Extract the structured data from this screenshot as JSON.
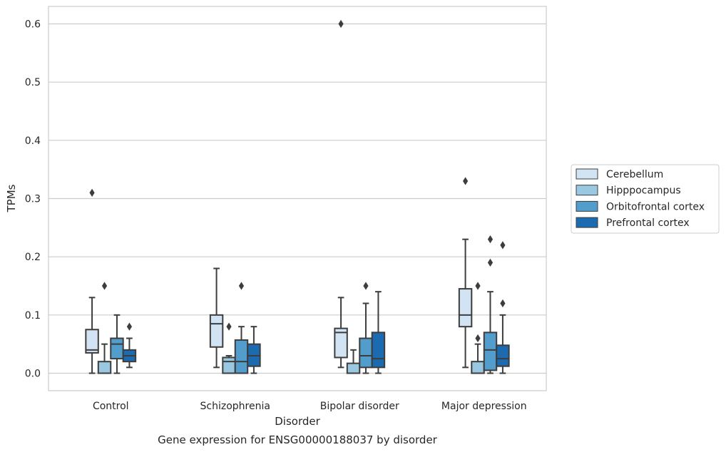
{
  "chart_data": {
    "type": "box",
    "caption": "Gene expression for ENSG00000188037 by disorder",
    "xlabel": "Disorder",
    "ylabel": "TPMs",
    "ylim": [
      -0.03,
      0.63
    ],
    "yticks": [
      0.0,
      0.1,
      0.2,
      0.3,
      0.4,
      0.5,
      0.6
    ],
    "ytick_labels": [
      "0.0",
      "0.1",
      "0.2",
      "0.3",
      "0.4",
      "0.5",
      "0.6"
    ],
    "grid": "horizontal",
    "legend_position": "outside-right",
    "categories": [
      "Control",
      "Schizophrenia",
      "Bipolar disorder",
      "Major depression"
    ],
    "series": [
      {
        "name": "Cerebellum",
        "color": "#d2e3f3",
        "boxes": [
          {
            "whislo": 0.0,
            "q1": 0.035,
            "med": 0.04,
            "q3": 0.075,
            "whishi": 0.13,
            "fliers": [
              0.31
            ]
          },
          {
            "whislo": 0.01,
            "q1": 0.045,
            "med": 0.085,
            "q3": 0.1,
            "whishi": 0.18,
            "fliers": []
          },
          {
            "whislo": 0.01,
            "q1": 0.027,
            "med": 0.07,
            "q3": 0.077,
            "whishi": 0.13,
            "fliers": [
              0.6
            ]
          },
          {
            "whislo": 0.01,
            "q1": 0.08,
            "med": 0.1,
            "q3": 0.145,
            "whishi": 0.23,
            "fliers": [
              0.33
            ]
          }
        ]
      },
      {
        "name": "Hipppocampus",
        "color": "#9ac8e0",
        "boxes": [
          {
            "whislo": 0.0,
            "q1": 0.0,
            "med": 0.0,
            "q3": 0.02,
            "whishi": 0.05,
            "fliers": [
              0.15
            ]
          },
          {
            "whislo": 0.0,
            "q1": 0.0,
            "med": 0.02,
            "q3": 0.027,
            "whishi": 0.03,
            "fliers": [
              0.08
            ]
          },
          {
            "whislo": 0.0,
            "q1": 0.0,
            "med": 0.0,
            "q3": 0.017,
            "whishi": 0.04,
            "fliers": []
          },
          {
            "whislo": 0.0,
            "q1": 0.0,
            "med": 0.0,
            "q3": 0.02,
            "whishi": 0.05,
            "fliers": [
              0.06,
              0.15
            ]
          }
        ]
      },
      {
        "name": "Orbitofrontal cortex",
        "color": "#529dcc",
        "boxes": [
          {
            "whislo": 0.0,
            "q1": 0.025,
            "med": 0.05,
            "q3": 0.06,
            "whishi": 0.1,
            "fliers": []
          },
          {
            "whislo": 0.0,
            "q1": 0.0,
            "med": 0.02,
            "q3": 0.057,
            "whishi": 0.08,
            "fliers": [
              0.15
            ]
          },
          {
            "whislo": 0.0,
            "q1": 0.01,
            "med": 0.03,
            "q3": 0.06,
            "whishi": 0.12,
            "fliers": [
              0.15
            ]
          },
          {
            "whislo": 0.0,
            "q1": 0.005,
            "med": 0.04,
            "q3": 0.07,
            "whishi": 0.14,
            "fliers": [
              0.19,
              0.23
            ]
          }
        ]
      },
      {
        "name": "Prefrontal cortex",
        "color": "#1c6aaf",
        "boxes": [
          {
            "whislo": 0.01,
            "q1": 0.02,
            "med": 0.03,
            "q3": 0.04,
            "whishi": 0.06,
            "fliers": [
              0.08
            ]
          },
          {
            "whislo": 0.0,
            "q1": 0.012,
            "med": 0.03,
            "q3": 0.05,
            "whishi": 0.08,
            "fliers": []
          },
          {
            "whislo": 0.0,
            "q1": 0.01,
            "med": 0.025,
            "q3": 0.07,
            "whishi": 0.14,
            "fliers": []
          },
          {
            "whislo": 0.0,
            "q1": 0.012,
            "med": 0.025,
            "q3": 0.048,
            "whishi": 0.1,
            "fliers": [
              0.12,
              0.22
            ]
          }
        ]
      }
    ]
  }
}
